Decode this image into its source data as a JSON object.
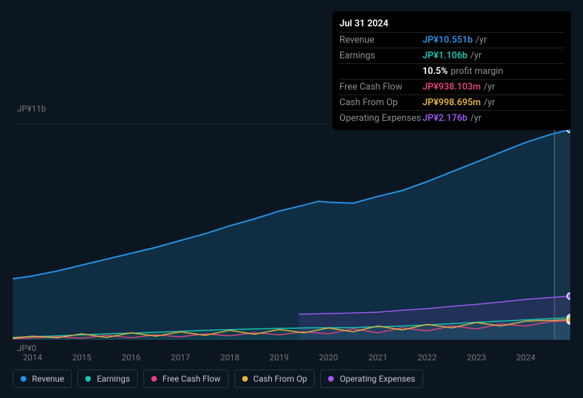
{
  "tooltip": {
    "date": "Jul 31 2024",
    "rows": [
      {
        "label": "Revenue",
        "value": "JP¥10.551b",
        "suffix": "/yr",
        "color": "#2393e6"
      },
      {
        "label": "Earnings",
        "value": "JP¥1.106b",
        "suffix": "/yr",
        "color": "#1bc2b0"
      },
      {
        "label": "",
        "value": "10.5%",
        "suffix": "profit margin",
        "color": "#ffffff"
      },
      {
        "label": "Free Cash Flow",
        "value": "JP¥938.103m",
        "suffix": "/yr",
        "color": "#e0417c"
      },
      {
        "label": "Cash From Op",
        "value": "JP¥998.695m",
        "suffix": "/yr",
        "color": "#e3b23c"
      },
      {
        "label": "Operating Expenses",
        "value": "JP¥2.176b",
        "suffix": "/yr",
        "color": "#9b59f0"
      }
    ]
  },
  "chart": {
    "type": "line",
    "y_label_top": "JP¥11b",
    "y_label_bottom": "JP¥0",
    "ylim": [
      0,
      11
    ],
    "x_years": [
      2014,
      2015,
      2016,
      2017,
      2018,
      2019,
      2020,
      2021,
      2022,
      2023,
      2024
    ],
    "x_domain": [
      2013.6,
      2024.9
    ],
    "hover_x": 2024.58,
    "background_color": "#0c1620",
    "grid_color": "#1a2330",
    "series": {
      "revenue": {
        "label": "Revenue",
        "color": "#2393e6",
        "fill": "rgba(35,147,230,0.18)",
        "line_width": 2,
        "points": [
          [
            2013.6,
            3.1
          ],
          [
            2014.0,
            3.25
          ],
          [
            2014.5,
            3.5
          ],
          [
            2015.0,
            3.8
          ],
          [
            2015.5,
            4.1
          ],
          [
            2016.0,
            4.4
          ],
          [
            2016.5,
            4.7
          ],
          [
            2017.0,
            5.05
          ],
          [
            2017.5,
            5.4
          ],
          [
            2018.0,
            5.8
          ],
          [
            2018.5,
            6.15
          ],
          [
            2019.0,
            6.55
          ],
          [
            2019.5,
            6.85
          ],
          [
            2019.8,
            7.05
          ],
          [
            2020.0,
            7.0
          ],
          [
            2020.5,
            6.95
          ],
          [
            2021.0,
            7.3
          ],
          [
            2021.5,
            7.6
          ],
          [
            2022.0,
            8.05
          ],
          [
            2022.5,
            8.55
          ],
          [
            2023.0,
            9.05
          ],
          [
            2023.5,
            9.55
          ],
          [
            2024.0,
            10.05
          ],
          [
            2024.5,
            10.45
          ],
          [
            2024.9,
            10.7
          ]
        ]
      },
      "earnings": {
        "label": "Earnings",
        "color": "#1bc2b0",
        "fill": "rgba(27,194,176,0.12)",
        "line_width": 1.5,
        "points": [
          [
            2013.6,
            0.12
          ],
          [
            2014.5,
            0.2
          ],
          [
            2015.5,
            0.3
          ],
          [
            2016.5,
            0.38
          ],
          [
            2017.5,
            0.48
          ],
          [
            2018.5,
            0.55
          ],
          [
            2019.5,
            0.6
          ],
          [
            2020.5,
            0.62
          ],
          [
            2021.5,
            0.7
          ],
          [
            2022.5,
            0.82
          ],
          [
            2023.5,
            0.95
          ],
          [
            2024.5,
            1.08
          ],
          [
            2024.9,
            1.12
          ]
        ]
      },
      "free_cash_flow": {
        "label": "Free Cash Flow",
        "color": "#e0417c",
        "fill": "none",
        "line_width": 1.5,
        "points": [
          [
            2013.6,
            0.05
          ],
          [
            2014.5,
            0.15
          ],
          [
            2015.0,
            0.08
          ],
          [
            2015.5,
            0.22
          ],
          [
            2016.0,
            0.1
          ],
          [
            2016.5,
            0.25
          ],
          [
            2017.0,
            0.15
          ],
          [
            2017.5,
            0.3
          ],
          [
            2018.0,
            0.2
          ],
          [
            2018.5,
            0.35
          ],
          [
            2019.0,
            0.25
          ],
          [
            2019.5,
            0.4
          ],
          [
            2020.0,
            0.3
          ],
          [
            2020.5,
            0.55
          ],
          [
            2021.0,
            0.35
          ],
          [
            2021.5,
            0.6
          ],
          [
            2022.0,
            0.45
          ],
          [
            2022.5,
            0.7
          ],
          [
            2023.0,
            0.55
          ],
          [
            2023.5,
            0.8
          ],
          [
            2024.0,
            0.7
          ],
          [
            2024.5,
            0.92
          ],
          [
            2024.9,
            0.95
          ]
        ]
      },
      "cash_from_op": {
        "label": "Cash From Op",
        "color": "#e3b23c",
        "fill": "none",
        "line_width": 1.5,
        "points": [
          [
            2013.6,
            0.08
          ],
          [
            2014.0,
            0.18
          ],
          [
            2014.5,
            0.1
          ],
          [
            2015.0,
            0.3
          ],
          [
            2015.5,
            0.12
          ],
          [
            2016.0,
            0.35
          ],
          [
            2016.5,
            0.18
          ],
          [
            2017.0,
            0.4
          ],
          [
            2017.5,
            0.22
          ],
          [
            2018.0,
            0.48
          ],
          [
            2018.5,
            0.28
          ],
          [
            2019.0,
            0.52
          ],
          [
            2019.5,
            0.35
          ],
          [
            2020.0,
            0.6
          ],
          [
            2020.5,
            0.4
          ],
          [
            2021.0,
            0.7
          ],
          [
            2021.5,
            0.5
          ],
          [
            2022.0,
            0.78
          ],
          [
            2022.5,
            0.6
          ],
          [
            2023.0,
            0.88
          ],
          [
            2023.5,
            0.7
          ],
          [
            2024.0,
            0.95
          ],
          [
            2024.5,
            0.98
          ],
          [
            2024.9,
            1.02
          ]
        ]
      },
      "operating_expenses": {
        "label": "Operating Expenses",
        "color": "#9b59f0",
        "fill": "rgba(155,89,240,0.12)",
        "line_width": 1.5,
        "start": 2019.4,
        "points": [
          [
            2019.4,
            1.3
          ],
          [
            2019.8,
            1.32
          ],
          [
            2020.5,
            1.36
          ],
          [
            2021.0,
            1.4
          ],
          [
            2021.5,
            1.5
          ],
          [
            2022.0,
            1.58
          ],
          [
            2022.5,
            1.7
          ],
          [
            2023.0,
            1.8
          ],
          [
            2023.5,
            1.92
          ],
          [
            2024.0,
            2.05
          ],
          [
            2024.5,
            2.15
          ],
          [
            2024.9,
            2.22
          ]
        ]
      }
    },
    "legend_order": [
      "revenue",
      "earnings",
      "free_cash_flow",
      "cash_from_op",
      "operating_expenses"
    ]
  }
}
